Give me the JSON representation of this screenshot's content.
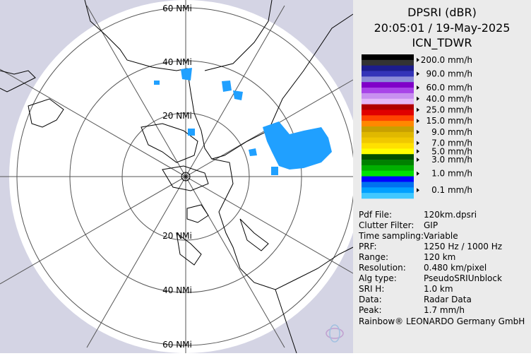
{
  "header": {
    "product": "DPSRI (dBR)",
    "timestamp": "20:05:01 / 19-May-2025",
    "site": "ICN_TDWR"
  },
  "legend": [
    {
      "label": "200.0 mm/h",
      "colors": [
        "#000000",
        "#333333"
      ]
    },
    {
      "label": "90.0 mm/h",
      "colors": [
        "#1c1c8c",
        "#3434b8",
        "#8c8cd8"
      ]
    },
    {
      "label": "60.0 mm/h",
      "colors": [
        "#8000c8",
        "#a844e8"
      ]
    },
    {
      "label": "40.0 mm/h",
      "colors": [
        "#c890f0",
        "#e4b8f8"
      ]
    },
    {
      "label": "25.0 mm/h",
      "colors": [
        "#b00000",
        "#e00000"
      ]
    },
    {
      "label": "15.0 mm/h",
      "colors": [
        "#ff4400",
        "#ff8800"
      ]
    },
    {
      "label": "9.0 mm/h",
      "colors": [
        "#c8a000",
        "#e0b800"
      ]
    },
    {
      "label": "7.0 mm/h",
      "colors": [
        "#f0c800",
        "#ffe000"
      ]
    },
    {
      "label": "5.0 mm/h",
      "colors": [
        "#ffff00"
      ]
    },
    {
      "label": "3.0 mm/h",
      "colors": [
        "#005000",
        "#008000"
      ]
    },
    {
      "label": "1.0 mm/h",
      "colors": [
        "#00b000",
        "#00e000",
        "#0000ff"
      ]
    },
    {
      "label": "0.1 mm/h",
      "colors": [
        "#0070f0",
        "#00a0ff",
        "#40c8ff"
      ]
    }
  ],
  "info": [
    {
      "key": "Pdf File:",
      "value": "120km.dpsri"
    },
    {
      "key": "Clutter Filter:",
      "value": "GIP"
    },
    {
      "key": "Time sampling:",
      "value": "Variable"
    },
    {
      "key": "PRF:",
      "value": "1250 Hz / 1000 Hz"
    },
    {
      "key": "Range:",
      "value": "120 km"
    },
    {
      "key": "Resolution:",
      "value": "0.480 km/pixel"
    },
    {
      "key": "Alg type:",
      "value": "PseudoSRIUnblock"
    },
    {
      "key": "SRI H:",
      "value": "1.0 km"
    },
    {
      "key": "Data:",
      "value": "Radar Data"
    },
    {
      "key": "Peak:",
      "value": "1.7 mm/h"
    }
  ],
  "footer": "Rainbow® LEONARDO Germany GmbH",
  "rings": [
    "20 NMi",
    "40 NMi",
    "60 NMi"
  ]
}
